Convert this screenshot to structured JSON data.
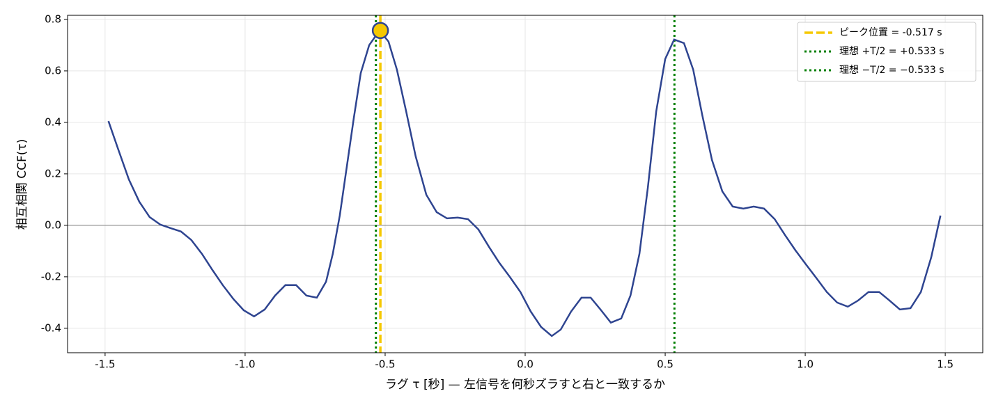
{
  "chart_data": {
    "type": "line",
    "xlabel": "ラグ τ  [秒] — 左信号を何秒ズラすと右と一致するか",
    "ylabel": "相互相関 CCF(τ)",
    "xlim": [
      -1.634,
      1.634
    ],
    "ylim": [
      -0.495,
      0.816
    ],
    "xticks": [
      -1.5,
      {
        "value": -1.0,
        "label": "-1.0"
      },
      -0.5,
      {
        "value": 0.0,
        "label": "0.0"
      },
      0.5,
      {
        "value": 1.0,
        "label": "1.0"
      },
      1.5
    ],
    "yticks": [
      -0.4,
      -0.2,
      {
        "value": 0.0,
        "label": "0.0"
      },
      0.2,
      0.4,
      0.6,
      0.8
    ],
    "grid": true,
    "zero_line": 0,
    "x": [
      -1.488,
      -1.453,
      -1.415,
      -1.378,
      -1.341,
      -1.303,
      -1.266,
      -1.229,
      -1.192,
      -1.154,
      -1.117,
      -1.08,
      -1.042,
      -1.005,
      -0.968,
      -0.93,
      -0.893,
      -0.856,
      -0.818,
      -0.781,
      -0.744,
      -0.711,
      -0.687,
      -0.662,
      -0.637,
      -0.612,
      -0.587,
      -0.557,
      -0.52,
      -0.488,
      -0.458,
      -0.425,
      -0.391,
      -0.353,
      -0.316,
      -0.279,
      -0.241,
      -0.204,
      -0.167,
      -0.129,
      -0.092,
      -0.055,
      -0.017,
      0.02,
      0.057,
      0.095,
      0.127,
      0.164,
      0.201,
      0.234,
      0.269,
      0.306,
      0.343,
      0.376,
      0.408,
      0.438,
      0.468,
      0.5,
      0.532,
      0.567,
      0.6,
      0.632,
      0.667,
      0.704,
      0.741,
      0.779,
      0.816,
      0.853,
      0.891,
      0.928,
      0.965,
      1.002,
      1.04,
      1.077,
      1.114,
      1.152,
      1.189,
      1.226,
      1.264,
      1.301,
      1.338,
      1.376,
      1.413,
      1.45,
      1.483
    ],
    "series": [
      {
        "color": "#2e4490",
        "values": [
          0.405,
          0.295,
          0.178,
          0.092,
          0.032,
          0.003,
          -0.011,
          -0.024,
          -0.057,
          -0.111,
          -0.173,
          -0.232,
          -0.286,
          -0.33,
          -0.354,
          -0.327,
          -0.273,
          -0.232,
          -0.232,
          -0.273,
          -0.281,
          -0.219,
          -0.111,
          0.038,
          0.227,
          0.416,
          0.592,
          0.7,
          0.757,
          0.714,
          0.605,
          0.443,
          0.268,
          0.119,
          0.051,
          0.027,
          0.03,
          0.024,
          -0.016,
          -0.084,
          -0.146,
          -0.2,
          -0.259,
          -0.335,
          -0.395,
          -0.43,
          -0.405,
          -0.335,
          -0.281,
          -0.281,
          -0.327,
          -0.378,
          -0.362,
          -0.273,
          -0.111,
          0.146,
          0.443,
          0.646,
          0.722,
          0.708,
          0.605,
          0.43,
          0.254,
          0.132,
          0.073,
          0.065,
          0.073,
          0.065,
          0.024,
          -0.038,
          -0.097,
          -0.151,
          -0.205,
          -0.259,
          -0.3,
          -0.316,
          -0.292,
          -0.259,
          -0.259,
          -0.292,
          -0.327,
          -0.322,
          -0.259,
          -0.124,
          0.038
        ]
      }
    ],
    "vlines": [
      {
        "x": -0.517,
        "color": "#f5c800",
        "style": "dashed",
        "label": "ピーク位置 = -0.517 s"
      },
      {
        "x": 0.533,
        "color": "#008000",
        "style": "dotted",
        "label": "理想 +T/2 = +0.533 s"
      },
      {
        "x": -0.533,
        "color": "#008000",
        "style": "dotted",
        "label": "理想 −T/2 = −0.533 s"
      }
    ],
    "peak": {
      "x": -0.517,
      "y": 0.757,
      "color": "#f5c800"
    },
    "legend": "upper right"
  }
}
